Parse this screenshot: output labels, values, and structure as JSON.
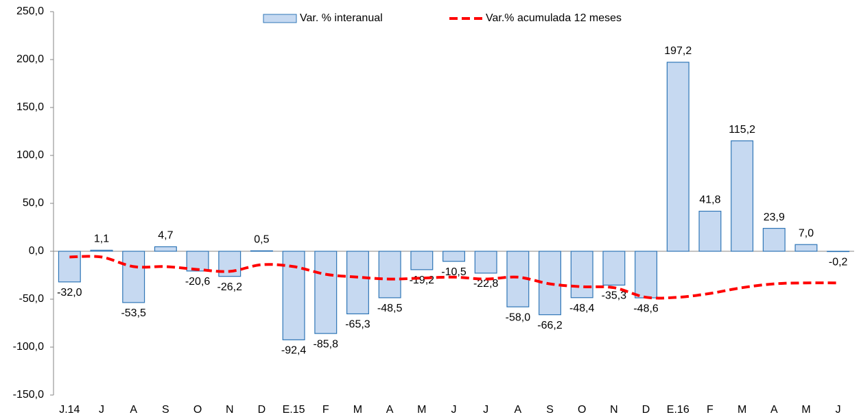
{
  "chart_data": {
    "type": "bar",
    "categories": [
      "J.14",
      "J",
      "A",
      "S",
      "O",
      "N",
      "D",
      "E.15",
      "F",
      "M",
      "A",
      "M",
      "J",
      "J",
      "A",
      "S",
      "O",
      "N",
      "D",
      "E.16",
      "F",
      "M",
      "A",
      "M",
      "J"
    ],
    "series": [
      {
        "name": "Var. % interanual",
        "type": "bar",
        "color": "#c6d9f1",
        "edge_color": "#2e75b6",
        "values": [
          -32.0,
          1.1,
          -53.5,
          4.7,
          -20.6,
          -26.2,
          0.5,
          -92.4,
          -85.8,
          -65.3,
          -48.5,
          -19.2,
          -10.5,
          -22.8,
          -58.0,
          -66.2,
          -48.4,
          -35.3,
          -48.6,
          197.2,
          41.8,
          115.2,
          23.9,
          7.0,
          -0.2
        ],
        "value_labels": [
          "-32,0",
          "1,1",
          "-53,5",
          "4,7",
          "-20,6",
          "-26,2",
          "0,5",
          "-92,4",
          "-85,8",
          "-65,3",
          "-48,5",
          "-19,2",
          "-10,5",
          "-22,8",
          "-58,0",
          "-66,2",
          "-48,4",
          "-35,3",
          "-48,6",
          "197,2",
          "41,8",
          "115,2",
          "23,9",
          "7,0",
          "-0,2"
        ]
      },
      {
        "name": "Var.% acumulada 12 meses",
        "type": "line",
        "color": "#ff0000",
        "dashed": true,
        "values": [
          -6,
          -6,
          -16,
          -16,
          -19,
          -21,
          -14,
          -16,
          -24,
          -27,
          -29,
          -28,
          -27,
          -29,
          -27,
          -34,
          -37,
          -38,
          -48,
          -48,
          -44,
          -38,
          -34,
          -33,
          -33
        ]
      }
    ],
    "ylim": [
      -150,
      250
    ],
    "yticks": [
      {
        "value": -150,
        "label": "-150,0"
      },
      {
        "value": -100,
        "label": "-100,0"
      },
      {
        "value": -50,
        "label": "-50,0"
      },
      {
        "value": 0,
        "label": "0,0"
      },
      {
        "value": 50,
        "label": "50,0"
      },
      {
        "value": 100,
        "label": "100,0"
      },
      {
        "value": 150,
        "label": "150,0"
      },
      {
        "value": 200,
        "label": "200,0"
      },
      {
        "value": 250,
        "label": "250,0"
      }
    ],
    "grid": false,
    "legend": "top"
  }
}
